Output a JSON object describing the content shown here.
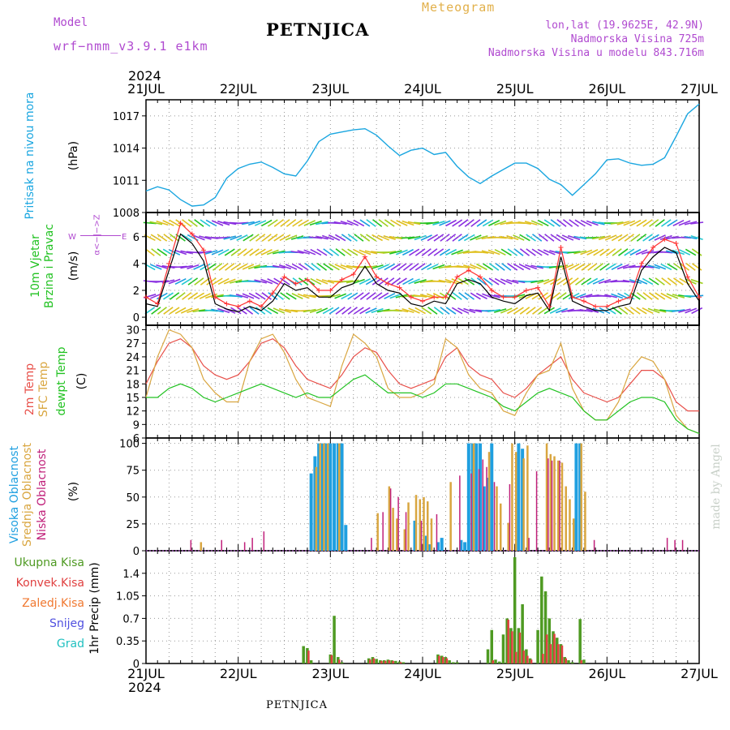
{
  "header": {
    "model_label": "Model",
    "model_value": "wrf−nmm_v3.9.1  e1km",
    "meteogram": "Meteogram",
    "station": "PETNJICA",
    "lonlat": "lon,lat (19.9625E, 42.9N)",
    "elevation": "Nadmorska Visina 725m",
    "model_elevation": "Nadmorska Visina u modelu 843.716m",
    "year": "2024"
  },
  "footer": {
    "station": "PETNJICA",
    "year": "2024",
    "credit": "made by Angel"
  },
  "time_axis": {
    "labels": [
      "21JUL",
      "22JUL",
      "23JUL",
      "24JUL",
      "25JUL",
      "26JUL",
      "27JUL"
    ],
    "range_hours": [
      0,
      144
    ]
  },
  "colors": {
    "pressure": "#1aa6e0",
    "two_m_temp": "#e8504a",
    "sfc_temp": "#d9a640",
    "dewpt": "#22c222",
    "visoka": "#1f9fe0",
    "srednja": "#d9a640",
    "niska": "#c0207a",
    "ukupna": "#4e9a22",
    "konvek": "#e04040",
    "zaledj": "#f07830",
    "snijeg": "#5050e0",
    "grad": "#20c0c0",
    "wind_speed": "#000000",
    "wind_gust": "#ff3030"
  },
  "panel_labels": {
    "pressure": {
      "name": "Pritisak na nivou mora",
      "unit": "(hPa)"
    },
    "wind": {
      "name1": "10m Vjetar",
      "name2": "Brzina i Pravac",
      "unit": "(m/s)",
      "compass_ns": "α<−|−>Z",
      "compass_w": "W",
      "compass_e": "E"
    },
    "temp": {
      "name1": "2m Temp",
      "name2": "SFC Temp",
      "name3": "dewpt Temp",
      "unit": "(C)"
    },
    "cloud": {
      "name1": "Visoka Oblacnost",
      "name2": "Srednja Oblacnost",
      "name3": "Niska Oblacnost",
      "unit": "(%)"
    },
    "precip": {
      "items": [
        "Ukupna Kisa",
        "Konvek.Kisa",
        "Zaledj.Kisa",
        "Snijeg",
        "Grad"
      ],
      "unit": "1hr Precip (mm)"
    }
  },
  "chart_data": [
    {
      "type": "line",
      "title": "Pritisak na nivou mora",
      "ylabel": "(hPa)",
      "ylim": [
        1008,
        1018.5
      ],
      "yticks": [
        1008,
        1011,
        1014,
        1017
      ],
      "x_hours": [
        0,
        3,
        6,
        9,
        12,
        15,
        18,
        21,
        24,
        27,
        30,
        33,
        36,
        39,
        42,
        45,
        48,
        51,
        54,
        57,
        60,
        63,
        66,
        69,
        72,
        75,
        78,
        81,
        84,
        87,
        90,
        93,
        96,
        99,
        102,
        105,
        108,
        111,
        114,
        117,
        120,
        123,
        126,
        129,
        132,
        135,
        138,
        141,
        144
      ],
      "series": [
        {
          "name": "Pritisak na nivou mora",
          "values": [
            1010.0,
            1010.4,
            1010.1,
            1009.2,
            1008.6,
            1008.7,
            1009.4,
            1011.2,
            1012.1,
            1012.5,
            1012.7,
            1012.2,
            1011.6,
            1011.4,
            1012.8,
            1014.6,
            1015.3,
            1015.5,
            1015.7,
            1015.8,
            1015.2,
            1014.2,
            1013.3,
            1013.8,
            1014.0,
            1013.4,
            1013.6,
            1012.3,
            1011.3,
            1010.7,
            1011.4,
            1012.0,
            1012.6,
            1012.6,
            1012.1,
            1011.1,
            1010.6,
            1009.6,
            1010.6,
            1011.6,
            1012.9,
            1013.0,
            1012.6,
            1012.4,
            1012.5,
            1013.1,
            1015.1,
            1017.2,
            1018.1
          ]
        }
      ]
    },
    {
      "type": "line",
      "title": "10m Vjetar",
      "ylabel": "(m/s)",
      "ylim": [
        -0.6,
        7.8
      ],
      "yticks": [
        0,
        2,
        4,
        6
      ],
      "x_hours": [
        0,
        3,
        6,
        9,
        12,
        15,
        18,
        21,
        24,
        27,
        30,
        33,
        36,
        39,
        42,
        45,
        48,
        51,
        54,
        57,
        60,
        63,
        66,
        69,
        72,
        75,
        78,
        81,
        84,
        87,
        90,
        93,
        96,
        99,
        102,
        105,
        108,
        111,
        114,
        117,
        120,
        123,
        126,
        129,
        132,
        135,
        138,
        141,
        144
      ],
      "series": [
        {
          "name": "speed",
          "values": [
            1.0,
            0.8,
            3.5,
            6.2,
            5.5,
            4.2,
            1.0,
            0.6,
            0.4,
            0.8,
            0.5,
            1.2,
            2.5,
            2.0,
            2.2,
            1.5,
            1.5,
            2.2,
            2.5,
            3.8,
            2.5,
            2.0,
            1.8,
            1.0,
            0.8,
            1.2,
            1.0,
            2.5,
            2.8,
            2.5,
            1.5,
            1.2,
            1.0,
            1.6,
            1.8,
            0.5,
            4.5,
            1.2,
            0.8,
            0.5,
            0.5,
            0.8,
            1.0,
            3.5,
            4.5,
            5.2,
            4.8,
            2.5,
            1.2
          ]
        },
        {
          "name": "gust",
          "values": [
            1.5,
            1.0,
            4.0,
            7.0,
            6.2,
            5.0,
            1.5,
            1.0,
            0.8,
            1.2,
            0.8,
            1.8,
            3.0,
            2.5,
            2.8,
            2.0,
            2.0,
            2.8,
            3.2,
            4.5,
            3.0,
            2.5,
            2.2,
            1.5,
            1.2,
            1.5,
            1.5,
            3.0,
            3.5,
            3.0,
            2.0,
            1.5,
            1.5,
            2.0,
            2.2,
            0.8,
            5.2,
            1.5,
            1.2,
            0.8,
            0.8,
            1.2,
            1.5,
            4.0,
            5.2,
            5.8,
            5.5,
            3.0,
            1.5
          ]
        }
      ]
    },
    {
      "type": "line",
      "title": "2m Temp / SFC Temp / dewpt Temp",
      "ylabel": "(C)",
      "ylim": [
        6,
        31
      ],
      "yticks": [
        6,
        9,
        12,
        15,
        18,
        21,
        24,
        27,
        30
      ],
      "x_hours": [
        0,
        3,
        6,
        9,
        12,
        15,
        18,
        21,
        24,
        27,
        30,
        33,
        36,
        39,
        42,
        45,
        48,
        51,
        54,
        57,
        60,
        63,
        66,
        69,
        72,
        75,
        78,
        81,
        84,
        87,
        90,
        93,
        96,
        99,
        102,
        105,
        108,
        111,
        114,
        117,
        120,
        123,
        126,
        129,
        132,
        135,
        138,
        141,
        144
      ],
      "series": [
        {
          "name": "2m Temp",
          "values": [
            18,
            23,
            27,
            28,
            26,
            22,
            20,
            19,
            20,
            23,
            27,
            28,
            26,
            22,
            19,
            18,
            17,
            20,
            24,
            26,
            25,
            21,
            18,
            17,
            18,
            19,
            24,
            26,
            22,
            20,
            19,
            16,
            15,
            17,
            20,
            22,
            24,
            19,
            16,
            15,
            14,
            15,
            18,
            21,
            21,
            19,
            14,
            12,
            12
          ]
        },
        {
          "name": "SFC Temp",
          "values": [
            15,
            24,
            30,
            29,
            26,
            19,
            16,
            14,
            14,
            23,
            28,
            29,
            25,
            19,
            15,
            14,
            13,
            22,
            29,
            27,
            24,
            17,
            15,
            15,
            16,
            18,
            28,
            26,
            20,
            17,
            16,
            12,
            11,
            16,
            20,
            21,
            27,
            17,
            12,
            10,
            10,
            14,
            21,
            24,
            23,
            19,
            11,
            8,
            7
          ]
        },
        {
          "name": "dewpt Temp",
          "values": [
            15,
            15,
            17,
            18,
            17,
            15,
            14,
            15,
            16,
            17,
            18,
            17,
            16,
            15,
            16,
            15,
            15,
            17,
            19,
            20,
            18,
            16,
            16,
            16,
            15,
            16,
            18,
            18,
            17,
            16,
            15,
            13,
            12,
            14,
            16,
            17,
            16,
            15,
            12,
            10,
            10,
            12,
            14,
            15,
            15,
            14,
            10,
            8,
            7
          ]
        }
      ]
    },
    {
      "type": "bar",
      "title": "Visoka / Srednja / Niska Oblacnost",
      "ylabel": "(%)",
      "ylim": [
        0,
        105
      ],
      "yticks": [
        0,
        25,
        50,
        75,
        100
      ],
      "series": [
        {
          "name": "Visoka Oblacnost",
          "x_hours": [
            43,
            44,
            45,
            46,
            47,
            48,
            49,
            50,
            51,
            52,
            70,
            73,
            74,
            76,
            77,
            82,
            83,
            84,
            85,
            86,
            87,
            88,
            89,
            90,
            97,
            98,
            112,
            113
          ],
          "values": [
            72,
            88,
            100,
            100,
            100,
            100,
            100,
            100,
            100,
            24,
            28,
            14,
            6,
            8,
            12,
            10,
            8,
            100,
            100,
            100,
            100,
            60,
            68,
            100,
            100,
            95,
            100,
            100
          ]
        },
        {
          "name": "Srednja Oblacnost",
          "x_hours": [
            14,
            44,
            45,
            46,
            47,
            50,
            60,
            63,
            64,
            65,
            67,
            68,
            70,
            71,
            72,
            73,
            74,
            79,
            85,
            89,
            91,
            92,
            94,
            95,
            96,
            98,
            99,
            104,
            105,
            106,
            107,
            108,
            109,
            110,
            111,
            113,
            114
          ],
          "values": [
            8,
            78,
            100,
            100,
            100,
            100,
            35,
            60,
            40,
            30,
            20,
            45,
            52,
            48,
            50,
            46,
            30,
            64,
            100,
            92,
            60,
            44,
            26,
            100,
            92,
            86,
            98,
            100,
            90,
            88,
            84,
            82,
            60,
            48,
            30,
            100,
            55
          ]
        },
        {
          "name": "Niska Oblacnost",
          "x_hours": [
            12,
            20,
            26,
            28,
            31,
            59,
            62,
            64,
            66,
            68,
            72,
            76,
            82,
            85,
            87,
            88,
            89,
            91,
            95,
            100,
            102,
            105,
            106,
            108,
            117,
            136,
            138,
            140
          ],
          "values": [
            10,
            10,
            8,
            12,
            18,
            12,
            36,
            58,
            50,
            36,
            28,
            34,
            70,
            72,
            76,
            85,
            78,
            64,
            62,
            12,
            74,
            86,
            84,
            84,
            10,
            12,
            10,
            10
          ]
        }
      ]
    },
    {
      "type": "bar",
      "title": "1hr Precip",
      "ylabel": "1hr Precip (mm)",
      "ylim": [
        0,
        1.75
      ],
      "yticks": [
        0,
        0.35,
        0.7,
        1.05,
        1.4
      ],
      "series": [
        {
          "name": "Ukupna Kisa",
          "x_hours": [
            41,
            42,
            43,
            48,
            49,
            50,
            51,
            58,
            59,
            60,
            61,
            62,
            63,
            64,
            65,
            66,
            67,
            76,
            77,
            78,
            79,
            80,
            81,
            89,
            90,
            91,
            92,
            93,
            94,
            95,
            96,
            97,
            98,
            99,
            100,
            102,
            103,
            104,
            105,
            106,
            107,
            108,
            109,
            110,
            111,
            113,
            114
          ],
          "values": [
            0.27,
            0.24,
            0.05,
            0.14,
            0.74,
            0.1,
            0.02,
            0.08,
            0.1,
            0.07,
            0.05,
            0.05,
            0.06,
            0.05,
            0.04,
            0.03,
            0.02,
            0.14,
            0.12,
            0.1,
            0.05,
            0.02,
            0.02,
            0.22,
            0.52,
            0.06,
            0.03,
            0.45,
            0.7,
            0.55,
            1.65,
            0.55,
            0.92,
            0.22,
            0.08,
            0.52,
            1.35,
            1.12,
            0.7,
            0.5,
            0.4,
            0.3,
            0.1,
            0.05,
            0.02,
            0.69,
            0.06
          ]
        },
        {
          "name": "Konvek.Kisa",
          "x_hours": [
            42,
            48,
            50,
            58,
            59,
            61,
            62,
            63,
            64,
            66,
            76,
            77,
            78,
            90,
            94,
            95,
            96,
            97,
            98,
            99,
            100,
            103,
            104,
            105,
            106,
            107,
            108,
            109,
            113
          ],
          "values": [
            0.2,
            0.13,
            0.06,
            0.06,
            0.08,
            0.04,
            0.04,
            0.05,
            0.04,
            0.02,
            0.12,
            0.1,
            0.08,
            0.05,
            0.68,
            0.5,
            0.18,
            0.48,
            0.2,
            0.12,
            0.06,
            0.15,
            0.45,
            0.3,
            0.46,
            0.3,
            0.28,
            0.08,
            0.05
          ]
        }
      ]
    }
  ]
}
